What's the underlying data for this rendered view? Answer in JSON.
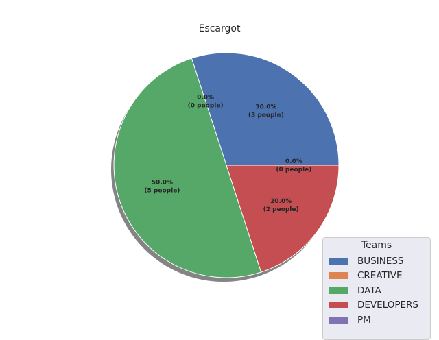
{
  "chart_data": {
    "type": "pie",
    "title": "Escargot",
    "categories": [
      "BUSINESS",
      "CREATIVE",
      "DATA",
      "DEVELOPERS",
      "PM"
    ],
    "values": [
      30.0,
      0.0,
      50.0,
      20.0,
      0.0
    ],
    "counts": [
      3,
      0,
      5,
      2,
      0
    ],
    "colors": [
      "#4c72b0",
      "#dd8452",
      "#55a868",
      "#c44e52",
      "#8172b3"
    ],
    "shadow": true,
    "legend": {
      "title": "Teams",
      "placement": "bottom-right"
    },
    "slice_labels": [
      [
        "30.0%",
        "(3 people)"
      ],
      [
        "0.0%",
        "(0 people)"
      ],
      [
        "50.0%",
        "(5 people)"
      ],
      [
        "20.0%",
        "(2 people)"
      ],
      [
        "0.0%",
        "(0 people)"
      ]
    ]
  }
}
